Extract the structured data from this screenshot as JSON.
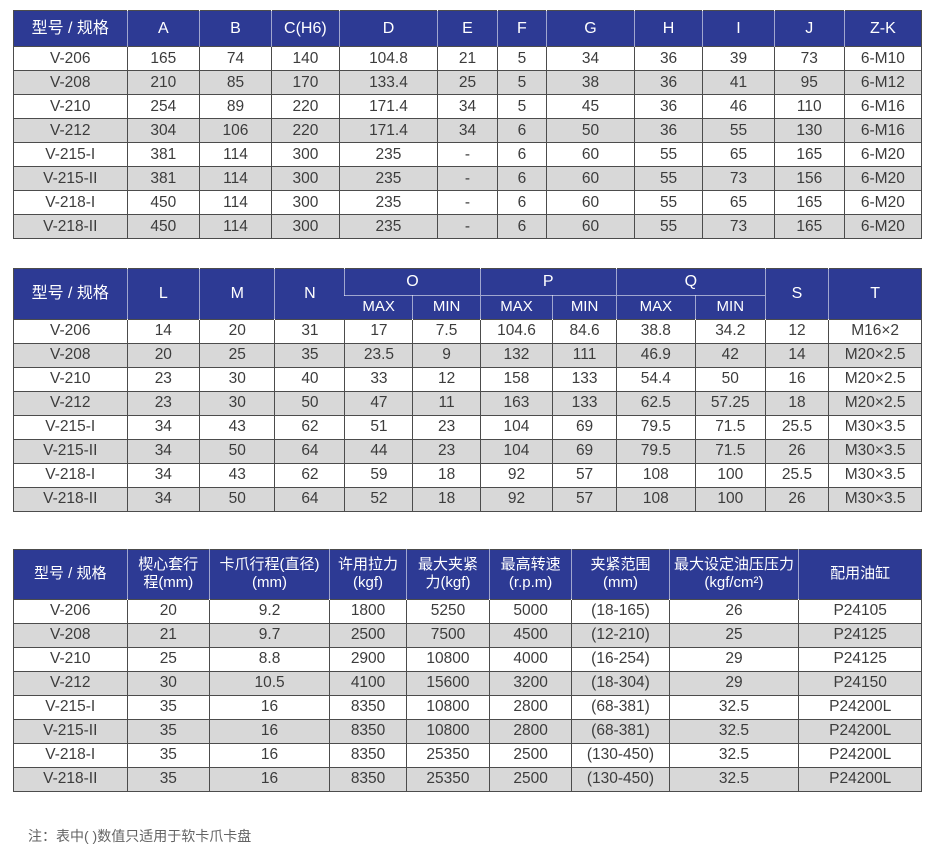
{
  "colors": {
    "header_bg": "#2d3a94",
    "header_text": "#ffffff",
    "row_stripe_bg": "#d8d8d8",
    "row_bg": "#ffffff",
    "border": "#4c4c4c",
    "body_text": "#3c3c3c",
    "note_text": "#636363"
  },
  "table1": {
    "columns": [
      "型号 / 规格",
      "A",
      "B",
      "C(H6)",
      "D",
      "E",
      "F",
      "G",
      "H",
      "I",
      "J",
      "Z-K"
    ],
    "rows": [
      [
        "V-206",
        "165",
        "74",
        "140",
        "104.8",
        "21",
        "5",
        "34",
        "36",
        "39",
        "73",
        "6-M10"
      ],
      [
        "V-208",
        "210",
        "85",
        "170",
        "133.4",
        "25",
        "5",
        "38",
        "36",
        "41",
        "95",
        "6-M12"
      ],
      [
        "V-210",
        "254",
        "89",
        "220",
        "171.4",
        "34",
        "5",
        "45",
        "36",
        "46",
        "110",
        "6-M16"
      ],
      [
        "V-212",
        "304",
        "106",
        "220",
        "171.4",
        "34",
        "6",
        "50",
        "36",
        "55",
        "130",
        "6-M16"
      ],
      [
        "V-215-I",
        "381",
        "114",
        "300",
        "235",
        "-",
        "6",
        "60",
        "55",
        "65",
        "165",
        "6-M20"
      ],
      [
        "V-215-II",
        "381",
        "114",
        "300",
        "235",
        "-",
        "6",
        "60",
        "55",
        "73",
        "156",
        "6-M20"
      ],
      [
        "V-218-I",
        "450",
        "114",
        "300",
        "235",
        "-",
        "6",
        "60",
        "55",
        "65",
        "165",
        "6-M20"
      ],
      [
        "V-218-II",
        "450",
        "114",
        "300",
        "235",
        "-",
        "6",
        "60",
        "55",
        "73",
        "165",
        "6-M20"
      ]
    ]
  },
  "table2": {
    "header": {
      "model": "型号 / 规格",
      "cols": [
        "L",
        "M",
        "N"
      ],
      "groups": [
        "O",
        "P",
        "Q"
      ],
      "sub": [
        "MAX",
        "MIN"
      ],
      "tail": [
        "S",
        "T"
      ]
    },
    "rows": [
      [
        "V-206",
        "14",
        "20",
        "31",
        "17",
        "7.5",
        "104.6",
        "84.6",
        "38.8",
        "34.2",
        "12",
        "M16×2"
      ],
      [
        "V-208",
        "20",
        "25",
        "35",
        "23.5",
        "9",
        "132",
        "111",
        "46.9",
        "42",
        "14",
        "M20×2.5"
      ],
      [
        "V-210",
        "23",
        "30",
        "40",
        "33",
        "12",
        "158",
        "133",
        "54.4",
        "50",
        "16",
        "M20×2.5"
      ],
      [
        "V-212",
        "23",
        "30",
        "50",
        "47",
        "11",
        "163",
        "133",
        "62.5",
        "57.25",
        "18",
        "M20×2.5"
      ],
      [
        "V-215-I",
        "34",
        "43",
        "62",
        "51",
        "23",
        "104",
        "69",
        "79.5",
        "71.5",
        "25.5",
        "M30×3.5"
      ],
      [
        "V-215-II",
        "34",
        "50",
        "64",
        "44",
        "23",
        "104",
        "69",
        "79.5",
        "71.5",
        "26",
        "M30×3.5"
      ],
      [
        "V-218-I",
        "34",
        "43",
        "62",
        "59",
        "18",
        "92",
        "57",
        "108",
        "100",
        "25.5",
        "M30×3.5"
      ],
      [
        "V-218-II",
        "34",
        "50",
        "64",
        "52",
        "18",
        "92",
        "57",
        "108",
        "100",
        "26",
        "M30×3.5"
      ]
    ]
  },
  "table3": {
    "columns": [
      "型号 / 规格",
      "楔心套行程(mm)",
      "卡爪行程(直径)(mm)",
      "许用拉力 (kgf)",
      "最大夹紧力(kgf)",
      "最高转速 (r.p.m)",
      "夹紧范围 (mm)",
      "最大设定油压压力 (kgf/cm²)",
      "配用油缸"
    ],
    "rows": [
      [
        "V-206",
        "20",
        "9.2",
        "1800",
        "5250",
        "5000",
        "(18-165)",
        "26",
        "P24105"
      ],
      [
        "V-208",
        "21",
        "9.7",
        "2500",
        "7500",
        "4500",
        "(12-210)",
        "25",
        "P24125"
      ],
      [
        "V-210",
        "25",
        "8.8",
        "2900",
        "10800",
        "4000",
        "(16-254)",
        "29",
        "P24125"
      ],
      [
        "V-212",
        "30",
        "10.5",
        "4100",
        "15600",
        "3200",
        "(18-304)",
        "29",
        "P24150"
      ],
      [
        "V-215-I",
        "35",
        "16",
        "8350",
        "10800",
        "2800",
        "(68-381)",
        "32.5",
        "P24200L"
      ],
      [
        "V-215-II",
        "35",
        "16",
        "8350",
        "10800",
        "2800",
        "(68-381)",
        "32.5",
        "P24200L"
      ],
      [
        "V-218-I",
        "35",
        "16",
        "8350",
        "25350",
        "2500",
        "(130-450)",
        "32.5",
        "P24200L"
      ],
      [
        "V-218-II",
        "35",
        "16",
        "8350",
        "25350",
        "2500",
        "(130-450)",
        "32.5",
        "P24200L"
      ]
    ]
  },
  "note": "注：表中( )数值只适用于软卡爪卡盘"
}
